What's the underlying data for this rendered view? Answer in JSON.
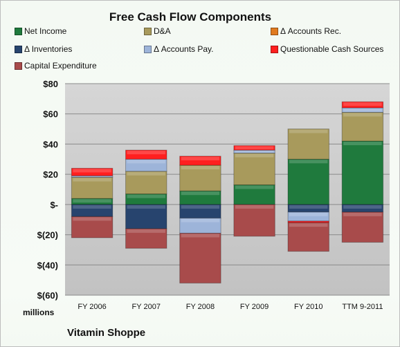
{
  "chart_data": {
    "type": "bar",
    "stacked": true,
    "title": "Free Cash Flow Components",
    "categories": [
      "FY 2006",
      "FY 2007",
      "FY 2008",
      "FY 2009",
      "FY 2010",
      "TTM 9-2011"
    ],
    "y_ticks": [
      "$80",
      "$60",
      "$40",
      "$20",
      "$-",
      "$(20)",
      "$(40)",
      "$(60)"
    ],
    "ylim": [
      -60,
      80
    ],
    "y_unit_label": "millions",
    "grid": true,
    "legend_position": "top",
    "series": [
      {
        "name": "Net Income",
        "color": "#1f7a3d",
        "values": [
          4,
          7,
          9,
          13,
          30,
          42
        ]
      },
      {
        "name": "D&A",
        "color": "#a89a5c",
        "values": [
          14,
          15,
          17,
          21,
          20,
          19
        ]
      },
      {
        "name": "Δ Accounts Rec.",
        "color": "#e07a1f",
        "values": [
          0,
          0,
          0,
          0,
          0,
          0
        ]
      },
      {
        "name": "Δ Inventories",
        "color": "#27446e",
        "values": [
          -8,
          -16,
          -9,
          0,
          -5,
          -5
        ]
      },
      {
        "name": "Δ Accounts Pay.",
        "color": "#9db4d9",
        "values": [
          1,
          8,
          -10,
          2,
          -6,
          3
        ]
      },
      {
        "name": "Questionable Cash Sources",
        "color": "#ff1f1f",
        "values": [
          5,
          6,
          6,
          3,
          -1,
          4
        ]
      },
      {
        "name": "Capital Expenditure",
        "color": "#a84b4b",
        "values": [
          -14,
          -13,
          -33,
          -21,
          -19,
          -20
        ]
      }
    ]
  },
  "footer": {
    "units": "millions",
    "company": "Vitamin Shoppe"
  }
}
